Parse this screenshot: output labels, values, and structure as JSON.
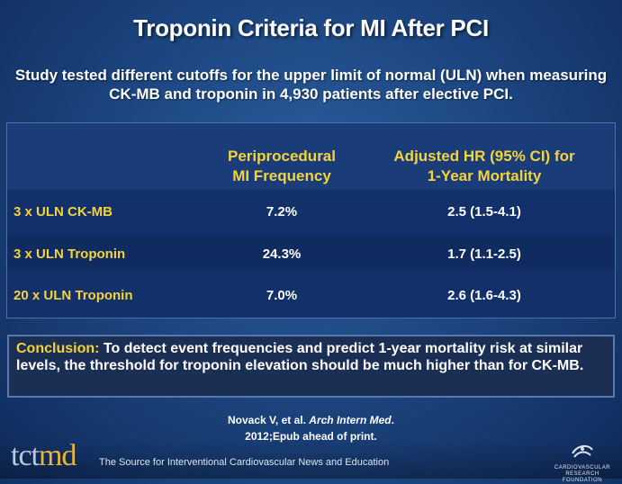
{
  "title": "Troponin Criteria for MI After PCI",
  "subtitle": "Study tested different cutoffs for the upper limit of normal (ULN) when measuring CK-MB and troponin in 4,930 patients after elective PCI.",
  "table": {
    "headers": [
      "",
      "Periprocedural MI Frequency",
      "Adjusted HR (95% CI) for 1-Year Mortality"
    ],
    "header_lines": {
      "col1": [
        "Periprocedural",
        "MI Frequency"
      ],
      "col2": [
        "Adjusted HR (95% CI) for",
        "1-Year Mortality"
      ]
    },
    "rows": [
      {
        "label": "3 x ULN CK-MB",
        "frequency": "7.2%",
        "hr": "2.5 (1.5-4.1)"
      },
      {
        "label": "3 x ULN Troponin",
        "frequency": "24.3%",
        "hr": "1.7 (1.1-2.5)"
      },
      {
        "label": "20 x ULN Troponin",
        "frequency": "7.0%",
        "hr": "2.6 (1.6-4.3)"
      }
    ]
  },
  "conclusion": {
    "label": "Conclusion:",
    "text": "To detect event frequencies and predict 1-year mortality risk at similar levels, the threshold for troponin elevation should be much higher than for CK-MB."
  },
  "citation": {
    "authors": "Novack V, et al.",
    "journal": "Arch Intern Med",
    "period": ".",
    "details": "2012;Epub ahead of print."
  },
  "footer": {
    "logo_tct": "tct",
    "logo_md": "md",
    "tagline": "The Source for Interventional Cardiovascular News and Education",
    "foundation_text": "CARDIOVASCULAR RESEARCH FOUNDATION"
  },
  "colors": {
    "accent_yellow": "#f4d33c",
    "background_blue": "#1d4782",
    "table_blue": "#12316a"
  }
}
